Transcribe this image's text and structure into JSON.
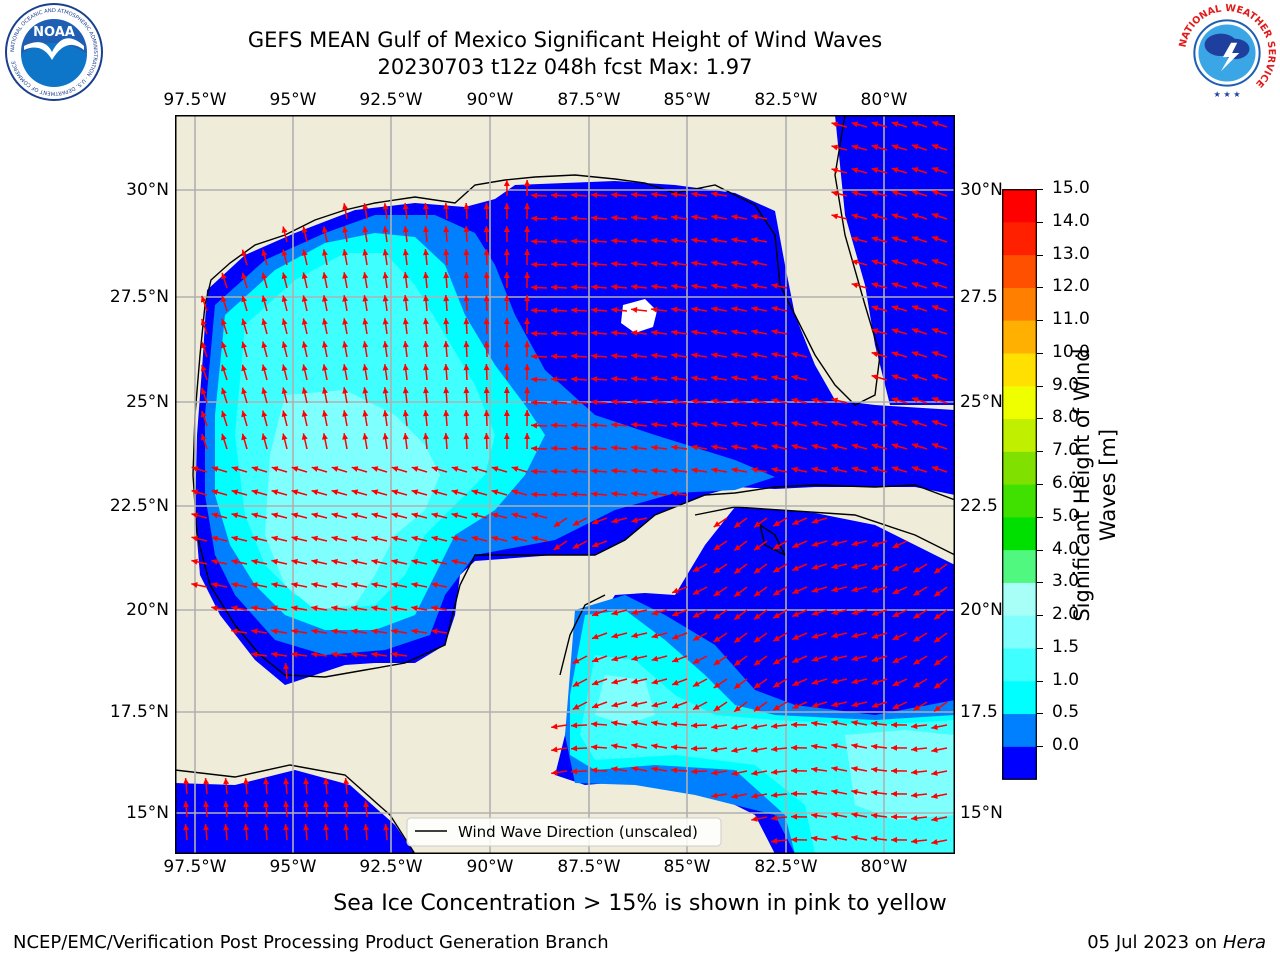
{
  "title": {
    "line1": "GEFS MEAN Gulf of Mexico Significant Height of Wind Waves",
    "line2": "20230703 t12z 048h fcst   Max: 1.97"
  },
  "lon_labels": [
    "97.5°W",
    "95°W",
    "92.5°W",
    "90°W",
    "87.5°W",
    "85°W",
    "82.5°W",
    "80°W"
  ],
  "lat_labels": [
    "30°N",
    "27.5°N",
    "25°N",
    "22.5°N",
    "20°N",
    "17.5°N",
    "15°N"
  ],
  "lat_labels_right": [
    "30°N",
    "27.5",
    "25°N",
    "22.5",
    "20°N",
    "17.5",
    "15°N"
  ],
  "legend": {
    "label": "Wind Wave Direction (unscaled)"
  },
  "colorbar": {
    "label_line1": "Significant Height of Wind",
    "label_line2": "Waves [m]",
    "ticks": [
      "15.0",
      "14.0",
      "13.0",
      "12.0",
      "11.0",
      "10.0",
      "9.0",
      "8.0",
      "7.0",
      "6.0",
      "5.0",
      "4.0",
      "3.0",
      "2.0",
      "1.5",
      "1.0",
      "0.5",
      "0.0"
    ],
    "colors": [
      "#0000ff",
      "#0080ff",
      "#00ffff",
      "#40ffff",
      "#80ffff",
      "#a8fff8",
      "#50f880",
      "#00e000",
      "#40e000",
      "#80e000",
      "#c0f000",
      "#f0ff00",
      "#ffe000",
      "#ffb000",
      "#ff8000",
      "#ff5000",
      "#ff2000",
      "#ff0000"
    ],
    "min": 0,
    "max": 15
  },
  "chart_data": {
    "type": "map",
    "region": "Gulf of Mexico",
    "variable": "Significant Height of Wind Waves",
    "units": "m",
    "max_value": 1.97,
    "lon_range": [
      -98,
      -78
    ],
    "lat_range": [
      14,
      31.5
    ],
    "colors": {
      "land": "#efedda",
      "grid": "#b0b0b0",
      "arrow": "#ff0000"
    }
  },
  "subtitle": "Sea Ice Concentration > 15% is shown in pink to yellow",
  "footer": {
    "left": "NCEP/EMC/Verification Post Processing Product Generation Branch",
    "date": "05 Jul 2023 on ",
    "host": "Hera"
  },
  "logos": {
    "noaa_text": "NOAA",
    "noaa_ring": "NATIONAL OCEANIC AND ATMOSPHERIC ADMINISTRATION · U.S. DEPARTMENT OF COMMERCE",
    "nws_ring": "NATIONAL WEATHER SERVICE"
  }
}
